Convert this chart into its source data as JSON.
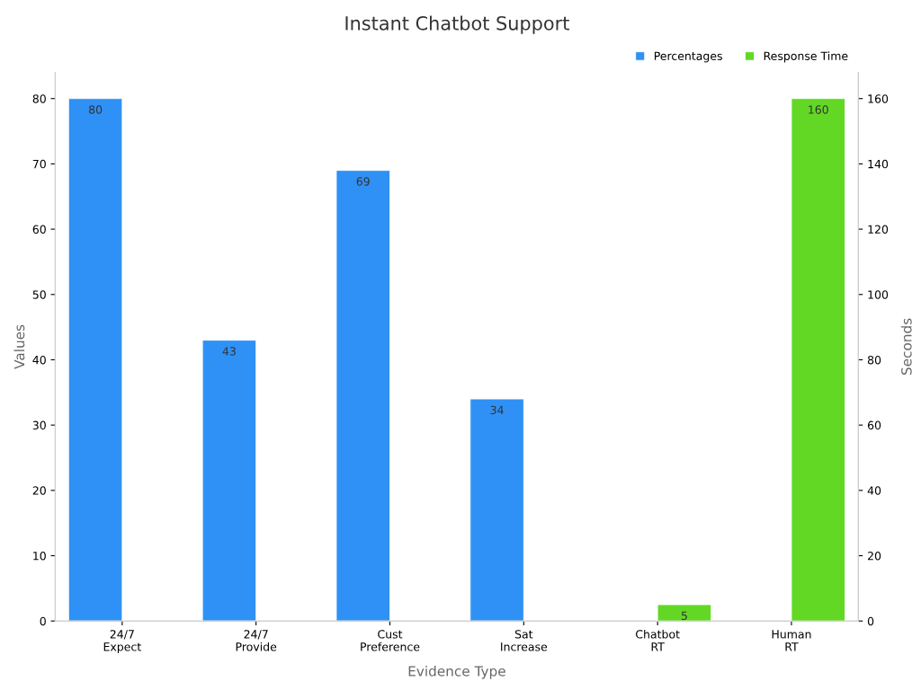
{
  "chart_data": {
    "type": "bar",
    "title": "Instant Chatbot Support",
    "xlabel": "Evidence Type",
    "ylabel": "Values",
    "y2label": "Seconds",
    "categories": [
      "24/7\nExpect",
      "24/7\nProvide",
      "Cust\nPreference",
      "Sat\nIncrease",
      "Chatbot\nRT",
      "Human\nRT"
    ],
    "series": [
      {
        "name": "Percentages",
        "color": "#2f91f5",
        "values": [
          80,
          43,
          69,
          34,
          null,
          null
        ]
      },
      {
        "name": "Response Time",
        "color": "#62d824",
        "axis": "y2",
        "values": [
          null,
          null,
          null,
          null,
          5,
          160
        ]
      }
    ],
    "ylim": [
      0,
      84
    ],
    "yticks": [
      0,
      10,
      20,
      30,
      40,
      50,
      60,
      70,
      80
    ],
    "y2lim": [
      0,
      168
    ],
    "y2ticks": [
      0,
      20,
      40,
      60,
      80,
      100,
      120,
      140,
      160
    ],
    "data_labels": true,
    "legend": "top right",
    "grid": false
  }
}
